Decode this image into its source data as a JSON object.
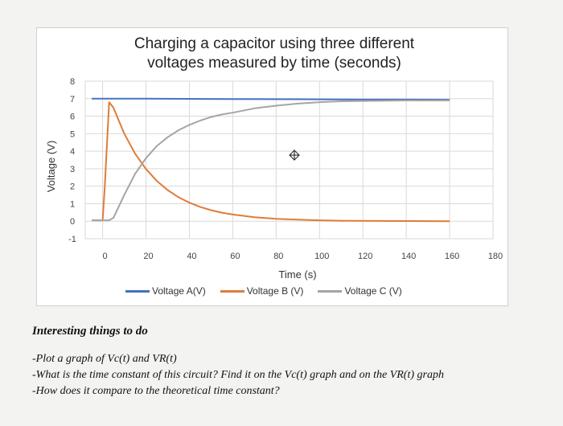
{
  "chart_data": {
    "type": "line",
    "title_line1": "Charging a capacitor using three different",
    "title_line2": "voltages measured by time (seconds)",
    "xlabel": "Time (s)",
    "ylabel": "Voltage (V)",
    "xlim": [
      -8,
      180
    ],
    "ylim": [
      -1,
      8
    ],
    "x_ticks": [
      "0",
      "20",
      "40",
      "60",
      "80",
      "100",
      "120",
      "140",
      "160",
      "180"
    ],
    "y_ticks": [
      "-1",
      "0",
      "1",
      "2",
      "3",
      "4",
      "5",
      "6",
      "7",
      "8"
    ],
    "grid": true,
    "legend_position": "bottom",
    "series": [
      {
        "name": "Voltage A(V)",
        "color": "#4472c4",
        "x": [
          -5,
          20,
          40,
          60,
          80,
          100,
          120,
          140,
          160
        ],
        "y": [
          7.0,
          7.0,
          6.99,
          6.98,
          6.97,
          6.96,
          6.95,
          6.95,
          6.94
        ]
      },
      {
        "name": "Voltage B (V)",
        "color": "#e07b39",
        "x": [
          -5,
          0,
          1,
          3,
          5,
          10,
          15,
          20,
          25,
          30,
          35,
          40,
          45,
          50,
          55,
          60,
          70,
          80,
          90,
          100,
          110,
          120,
          140,
          160
        ],
        "y": [
          0.05,
          0.05,
          2.0,
          6.8,
          6.48,
          5.0,
          3.86,
          2.98,
          2.3,
          1.78,
          1.37,
          1.06,
          0.82,
          0.63,
          0.49,
          0.38,
          0.23,
          0.14,
          0.09,
          0.05,
          0.03,
          0.02,
          0.01,
          0.0
        ]
      },
      {
        "name": "Voltage C (V)",
        "color": "#a5a5a5",
        "x": [
          -5,
          3,
          5,
          10,
          15,
          20,
          25,
          30,
          35,
          40,
          45,
          50,
          55,
          60,
          70,
          80,
          90,
          100,
          110,
          120,
          140,
          160
        ],
        "y": [
          0.05,
          0.05,
          0.2,
          1.5,
          2.71,
          3.6,
          4.3,
          4.8,
          5.2,
          5.5,
          5.75,
          5.95,
          6.1,
          6.2,
          6.45,
          6.6,
          6.72,
          6.8,
          6.85,
          6.87,
          6.9,
          6.9
        ]
      }
    ]
  },
  "notes": {
    "heading": "Interesting things to do",
    "line1": "-Plot a graph of Vc(t) and VR(t)",
    "line2": "-What is the time constant of this circuit? Find it on the Vc(t) graph and on the VR(t) graph",
    "line3": "-How does it compare to the theoretical time constant?"
  }
}
